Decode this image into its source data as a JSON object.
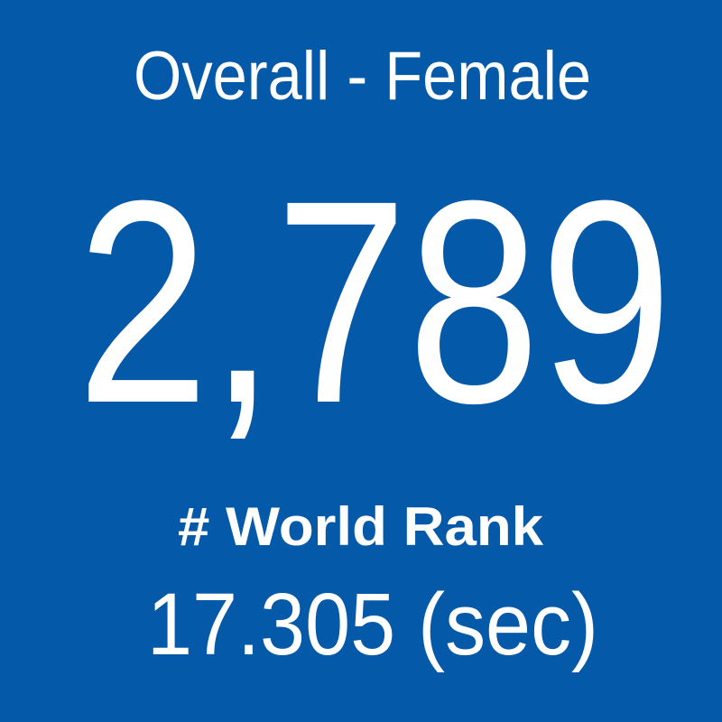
{
  "tile": {
    "title": "Overall - Female",
    "value": "2,789",
    "label": "# World Rank",
    "time": "17.305 (sec)"
  }
}
